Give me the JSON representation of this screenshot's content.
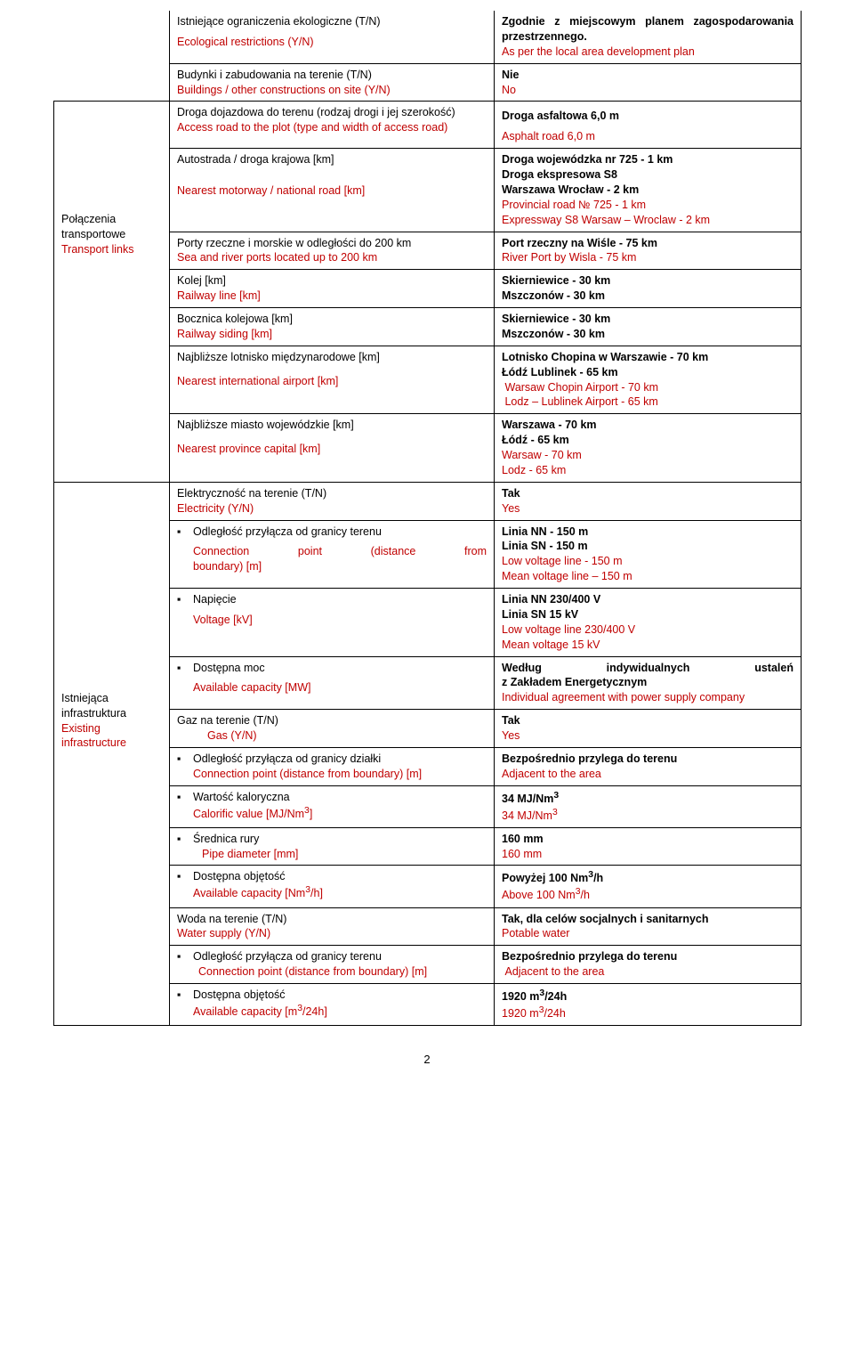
{
  "colors": {
    "red": "#c00000",
    "blue": "#0070c0",
    "black": "#000000",
    "border": "#000000"
  },
  "r1": {
    "l1": "Istniejące ograniczenia ekologiczne (T/N)",
    "l2": "Ecological restrictions (Y/N)",
    "v1a": "Zgodnie z miejscowym planem zagospodarowania przestrzennego.",
    "v1b": "As per the local area development plan"
  },
  "r2": {
    "l1": "Budynki i zabudowania na terenie (T/N)",
    "l2": "Buildings / other constructions on site (Y/N)",
    "v1": "Nie",
    "v2": "No"
  },
  "sec1": {
    "title_pl": "Połączenia transportowe",
    "title_en": "Transport links"
  },
  "r3": {
    "l1": "Droga dojazdowa do terenu (rodzaj drogi i jej szerokość)",
    "l2": "Access road to the plot (type and width of access road)",
    "v1": "Droga asfaltowa 6,0 m",
    "v2": "Asphalt road 6,0 m"
  },
  "r4": {
    "l1": "Autostrada / droga krajowa [km]",
    "l2": "Nearest motorway / national road [km]",
    "v1": "Droga wojewódzka nr 725 - 1 km",
    "v2": "Droga ekspresowa S8",
    "v3": "Warszawa Wrocław - 2 km",
    "v4": "Provincial road № 725 - 1 km",
    "v5": "Expressway S8 Warsaw – Wroclaw - 2 km"
  },
  "r5": {
    "l1": "Porty rzeczne i morskie w odległości do 200 km",
    "l2": "Sea and river ports located up to  200 km",
    "v1": "Port rzeczny na Wiśle - 75 km",
    "v2": "River Port by Wisla - 75 km"
  },
  "r6": {
    "l1": "Kolej [km]",
    "l2": "Railway line [km]",
    "v1": "Skierniewice - 30 km",
    "v2": "Mszczonów - 30 km"
  },
  "r7": {
    "l1": "Bocznica kolejowa [km]",
    "l2": "Railway siding [km]",
    "v1": "Skierniewice - 30 km",
    "v2": "Mszczonów - 30 km"
  },
  "r8": {
    "l1": "Najbliższe lotnisko międzynarodowe [km]",
    "l2": "Nearest international airport [km]",
    "v1": "Lotnisko Chopina w Warszawie - 70 km",
    "v2": "Łódź Lublinek - 65 km",
    "v3": "Warsaw Chopin Airport - 70 km",
    "v4": "Lodz – Lublinek Airport - 65 km"
  },
  "r9": {
    "l1": "Najbliższe miasto wojewódzkie [km]",
    "l2": "Nearest province capital [km]",
    "v1": "Warszawa - 70 km",
    "v2": "Łódź - 65 km",
    "v3": "Warsaw - 70 km",
    "v4": "Lodz - 65 km"
  },
  "sec2": {
    "title_pl": "Istniejąca infrastruktura",
    "title_en_1": "Existing",
    "title_en_2": "infrastructure"
  },
  "r10": {
    "l1": "Elektryczność na terenie (T/N)",
    "l2": "Electricity (Y/N)",
    "v1": "Tak",
    "v2": "Yes"
  },
  "r11": {
    "l1": "Odległość przyłącza od granicy terenu",
    "l2a": "Connection point (distance from",
    "l2b": "boundary) [m]",
    "v1": "Linia NN - 150 m",
    "v2": "Linia SN - 150 m",
    "v3": "Low voltage line - 150 m",
    "v4": "Mean voltage line – 150 m"
  },
  "r12": {
    "l1": "Napięcie",
    "l2": "Voltage [kV]",
    "v1": "Linia NN 230/400 V",
    "v2": "Linia SN 15 kV",
    "v3": "Low voltage line 230/400 V",
    "v4": "Mean voltage 15 kV"
  },
  "r13": {
    "l1": "Dostępna moc",
    "l2": "Available capacity [MW]",
    "v1": "Według indywidualnych ustaleń z Zakładem Energetycznym",
    "v2": "Individual agreement with power supply company"
  },
  "r14": {
    "l1": "Gaz na terenie (T/N)",
    "l2": "Gas (Y/N)",
    "v1": "Tak",
    "v2": "Yes"
  },
  "r15": {
    "l1": "Odległość przyłącza od granicy działki",
    "l2": "Connection point (distance from boundary) [m]",
    "v1": "Bezpośrednio przylega do terenu",
    "v2": "Adjacent to the area"
  },
  "r16": {
    "l1": "Wartość kaloryczna",
    "l2_a": "Calorific value [MJ/Nm",
    "l2_b": "]",
    "v1a": "34 MJ/Nm",
    "v2a": "34 MJ/Nm"
  },
  "r17": {
    "l1": "Średnica rury",
    "l2": "Pipe diameter [mm]",
    "v1": "160 mm",
    "v2": "160 mm"
  },
  "r18": {
    "l1": "Dostępna objętość",
    "l2a": "Available capacity [Nm",
    "l2b": "/h]",
    "v1a": "Powyżej 100 Nm",
    "v1b": "/h",
    "v2a": "Above 100 Nm",
    "v2b": "/h"
  },
  "r19": {
    "l1": "Woda  na terenie (T/N)",
    "l2": "Water supply (Y/N)",
    "v1": "Tak, dla celów socjalnych i sanitarnych",
    "v2": "Potable water"
  },
  "r20": {
    "l1": "Odległość przyłącza od granicy terenu",
    "l2": "Connection point (distance from boundary) [m]",
    "v1": "Bezpośrednio przylega do terenu",
    "v2": "Adjacent to the area"
  },
  "r21": {
    "l1": "Dostępna objętość",
    "l2a": "Available capacity [m",
    "l2b": "/24h]",
    "v1a": "1920 m",
    "v1b": "/24h",
    "v2a": "1920 m",
    "v2b": "/24h"
  },
  "page_number": "2"
}
